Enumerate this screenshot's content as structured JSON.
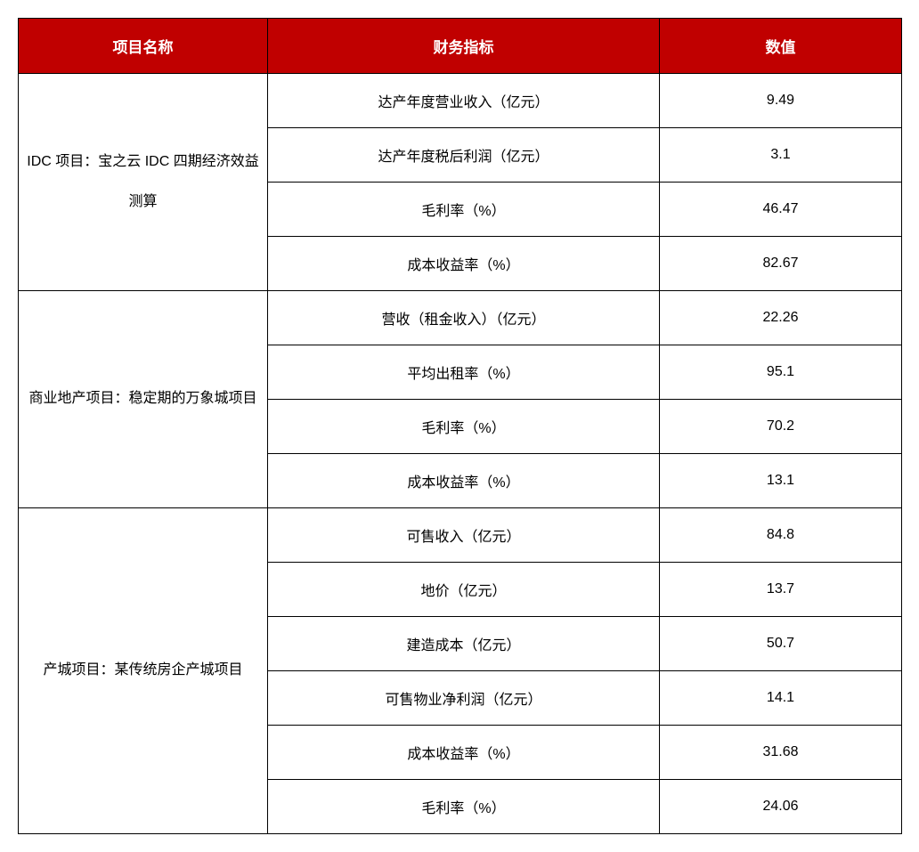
{
  "header": {
    "col1": "项目名称",
    "col2": "财务指标",
    "col3": "数值"
  },
  "groups": [
    {
      "name": "IDC 项目：宝之云 IDC 四期经济效益测算",
      "rows": [
        {
          "metric": "达产年度营业收入（亿元）",
          "value": "9.49"
        },
        {
          "metric": "达产年度税后利润（亿元）",
          "value": "3.1"
        },
        {
          "metric": "毛利率（%）",
          "value": "46.47"
        },
        {
          "metric": "成本收益率（%）",
          "value": "82.67"
        }
      ]
    },
    {
      "name": "商业地产项目：稳定期的万象城项目",
      "rows": [
        {
          "metric": "营收（租金收入）（亿元）",
          "value": "22.26"
        },
        {
          "metric": "平均出租率（%）",
          "value": "95.1"
        },
        {
          "metric": "毛利率（%）",
          "value": "70.2"
        },
        {
          "metric": "成本收益率（%）",
          "value": "13.1"
        }
      ]
    },
    {
      "name": "产城项目：某传统房企产城项目",
      "rows": [
        {
          "metric": "可售收入（亿元）",
          "value": "84.8"
        },
        {
          "metric": "地价（亿元）",
          "value": "13.7"
        },
        {
          "metric": "建造成本（亿元）",
          "value": "50.7"
        },
        {
          "metric": "可售物业净利润（亿元）",
          "value": "14.1"
        },
        {
          "metric": "成本收益率（%）",
          "value": "31.68"
        },
        {
          "metric": "毛利率（%）",
          "value": "24.06"
        }
      ]
    }
  ],
  "styles": {
    "header_bg": "#c00000",
    "header_fg": "#ffffff",
    "border_color": "#000000",
    "font_body": 16,
    "font_header": 17
  }
}
